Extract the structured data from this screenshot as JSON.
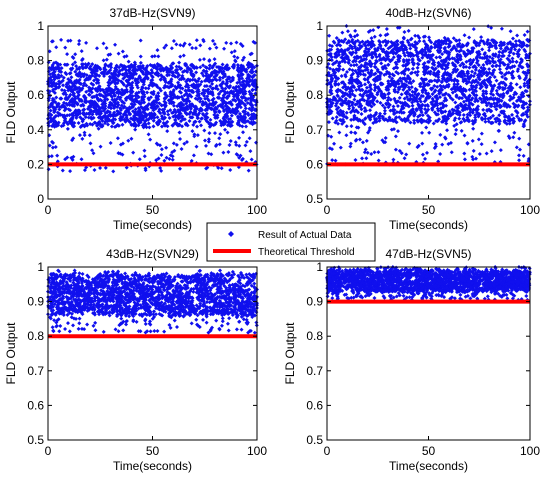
{
  "chart_data": [
    {
      "type": "scatter",
      "title": "37dB-Hz(SVN9)",
      "xlabel": "Time(seconds)",
      "ylabel": "FLD Output",
      "xlim": [
        0,
        100
      ],
      "ylim": [
        0,
        1
      ],
      "xticks": [
        "0",
        "50",
        "100"
      ],
      "yticks": [
        "0",
        "0.2",
        "0.4",
        "0.6",
        "0.8",
        "1"
      ],
      "threshold": 0.2,
      "scatter_band": {
        "core_low": 0.42,
        "core_high": 0.78,
        "min": 0.16,
        "max": 0.92,
        "count": 2200
      },
      "colors": {
        "points": "#1010ee",
        "threshold": "#ff0000"
      }
    },
    {
      "type": "scatter",
      "title": "40dB-Hz(SVN6)",
      "xlabel": "Time(seconds)",
      "ylabel": "FLD Output",
      "xlim": [
        0,
        100
      ],
      "ylim": [
        0.5,
        1
      ],
      "xticks": [
        "0",
        "50",
        "100"
      ],
      "yticks": [
        "0.5",
        "0.6",
        "0.7",
        "0.8",
        "0.9",
        "1"
      ],
      "threshold": 0.6,
      "scatter_band": {
        "core_low": 0.72,
        "core_high": 0.96,
        "min": 0.6,
        "max": 1.0,
        "count": 2200
      },
      "colors": {
        "points": "#1010ee",
        "threshold": "#ff0000"
      }
    },
    {
      "type": "scatter",
      "title": "43dB-Hz(SVN29)",
      "xlabel": "Time(seconds)",
      "ylabel": "FLD Output",
      "xlim": [
        0,
        100
      ],
      "ylim": [
        0.5,
        1
      ],
      "xticks": [
        "0",
        "50",
        "100"
      ],
      "yticks": [
        "0.5",
        "0.6",
        "0.7",
        "0.8",
        "0.9",
        "1"
      ],
      "threshold": 0.8,
      "scatter_band": {
        "core_low": 0.86,
        "core_high": 0.98,
        "min": 0.81,
        "max": 0.99,
        "count": 2200
      },
      "colors": {
        "points": "#1010ee",
        "threshold": "#ff0000"
      }
    },
    {
      "type": "scatter",
      "title": "47dB-Hz(SVN5)",
      "xlabel": "Time(seconds)",
      "ylabel": "FLD Output",
      "xlim": [
        0,
        100
      ],
      "ylim": [
        0.5,
        1
      ],
      "xticks": [
        "0",
        "50",
        "100"
      ],
      "yticks": [
        "0.5",
        "0.6",
        "0.7",
        "0.8",
        "0.9",
        "1"
      ],
      "threshold": 0.9,
      "scatter_band": {
        "core_low": 0.93,
        "core_high": 0.99,
        "min": 0.905,
        "max": 1.0,
        "count": 2200
      },
      "colors": {
        "points": "#1010ee",
        "threshold": "#ff0000"
      }
    }
  ],
  "legend": {
    "items": [
      {
        "label": "Result of Actual Data",
        "marker": "point",
        "color": "#1010ee"
      },
      {
        "label": "Theoretical Threshold",
        "marker": "line",
        "color": "#ff0000"
      }
    ]
  }
}
